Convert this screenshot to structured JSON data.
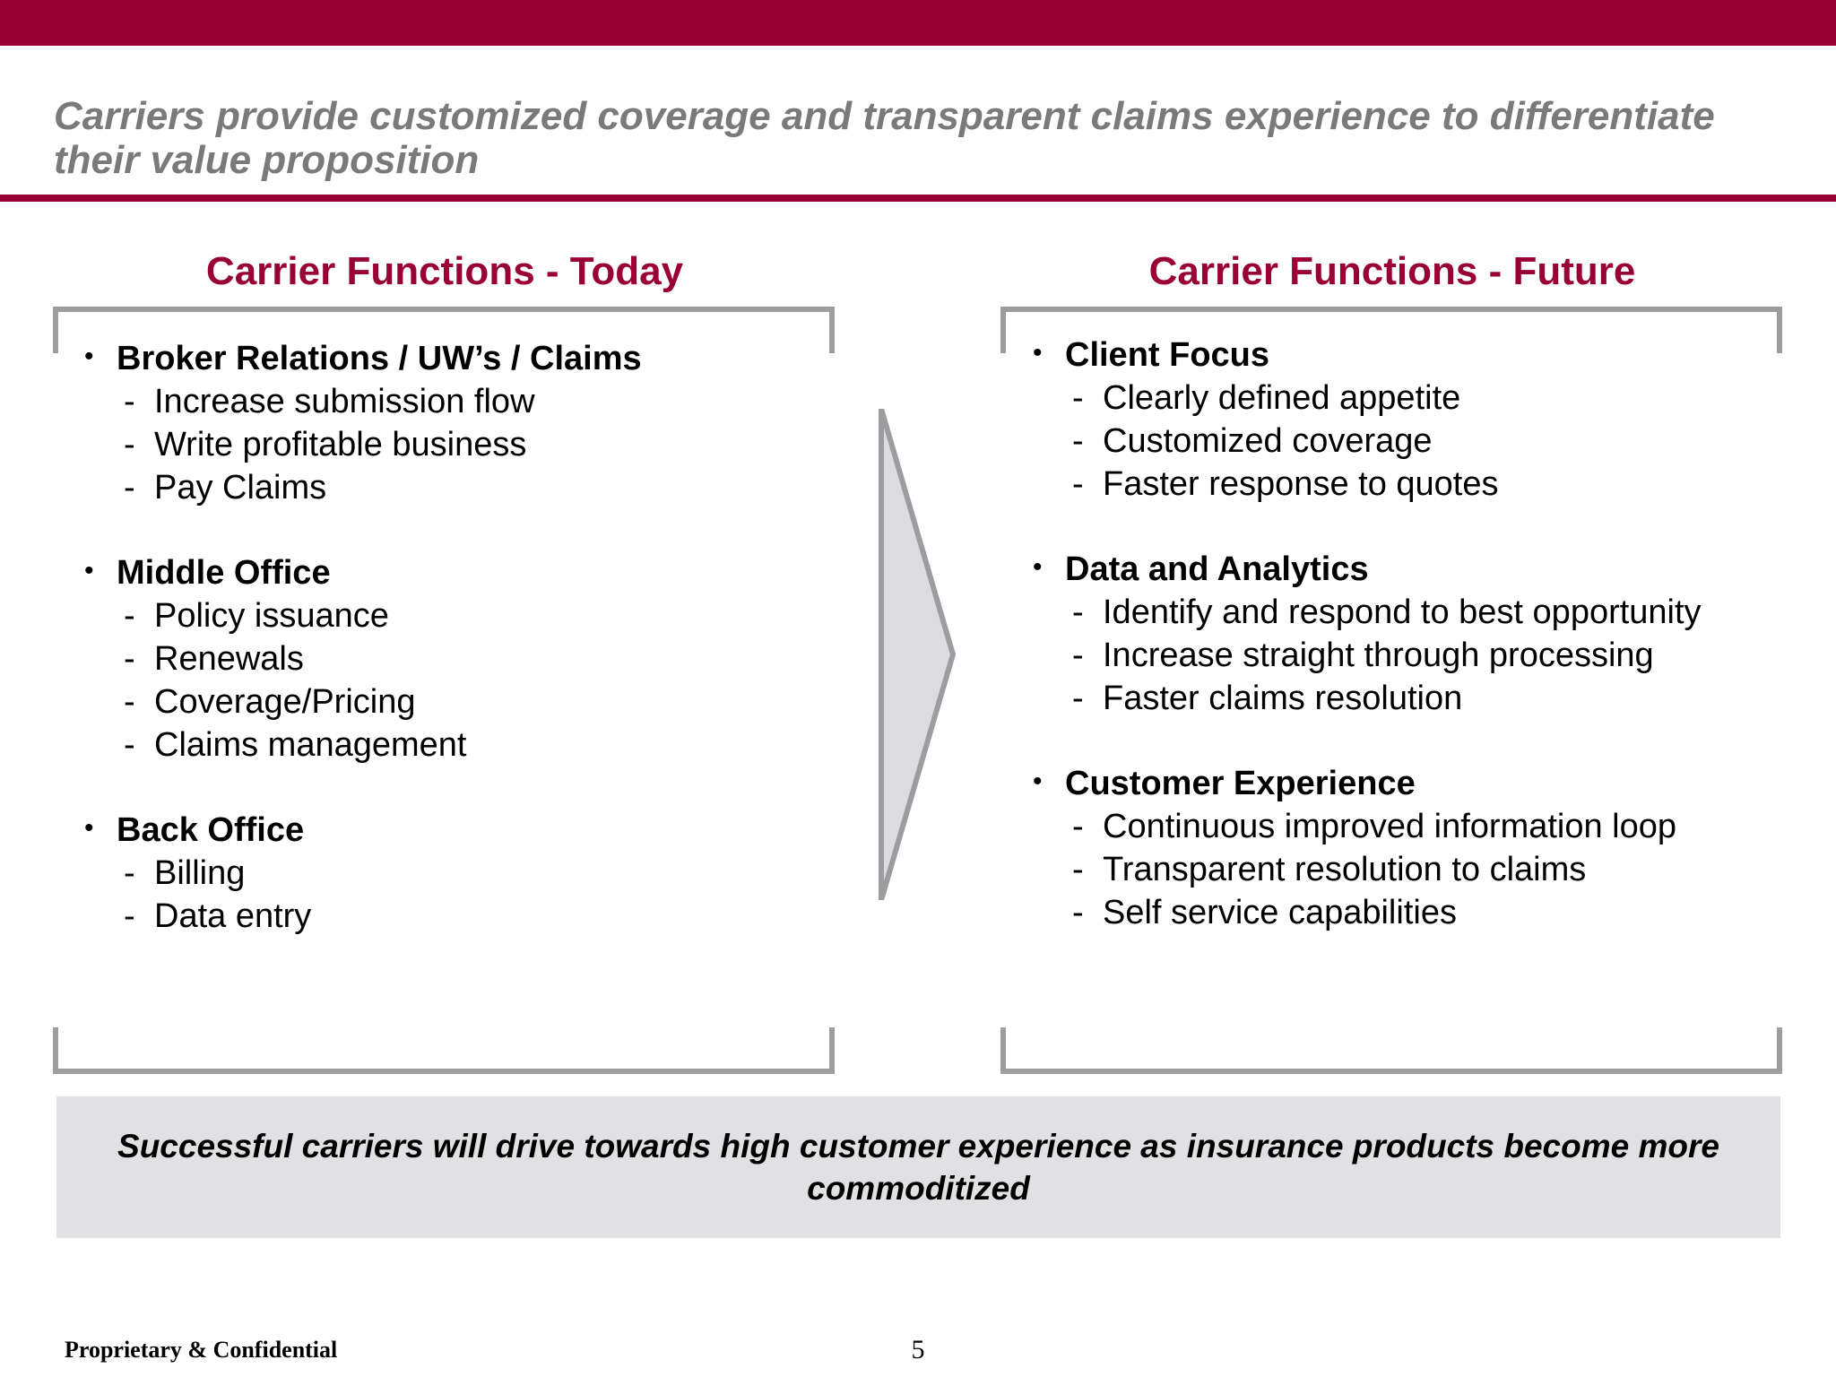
{
  "header": {
    "title": "Carriers provide customized coverage and transparent claims experience to differentiate their value proposition"
  },
  "today": {
    "heading": "Carrier Functions - Today",
    "groups": [
      {
        "title": "Broker Relations / UW’s / Claims",
        "items": [
          "Increase submission flow",
          "Write profitable business",
          "Pay Claims"
        ]
      },
      {
        "title": "Middle Office",
        "items": [
          "Policy issuance",
          "Renewals",
          "Coverage/Pricing",
          "Claims management"
        ]
      },
      {
        "title": "Back Office",
        "items": [
          "Billing",
          "Data entry"
        ]
      }
    ]
  },
  "future": {
    "heading": "Carrier Functions - Future",
    "groups": [
      {
        "title": "Client Focus",
        "items": [
          "Clearly defined appetite",
          "Customized coverage",
          "Faster response to quotes"
        ]
      },
      {
        "title": "Data and Analytics",
        "items": [
          "Identify and respond to best opportunity",
          "Increase straight through processing",
          "Faster claims resolution"
        ]
      },
      {
        "title": "Customer Experience",
        "items": [
          "Continuous improved information loop",
          "Transparent resolution to claims",
          "Self service capabilities"
        ]
      }
    ]
  },
  "callout": {
    "text": "Successful carriers will drive towards high customer experience as insurance products become more commoditized"
  },
  "footer": {
    "confidential": "Proprietary & Confidential",
    "page_number": "5"
  },
  "glyphs": {
    "bullet": "•",
    "dash": "-"
  },
  "colors": {
    "brand": "#990033",
    "title_gray": "#7a7a7c",
    "bracket_gray": "#9d9c9e",
    "callout_bg": "#e1e0e3",
    "arrow_fill": "#dcdbde"
  }
}
